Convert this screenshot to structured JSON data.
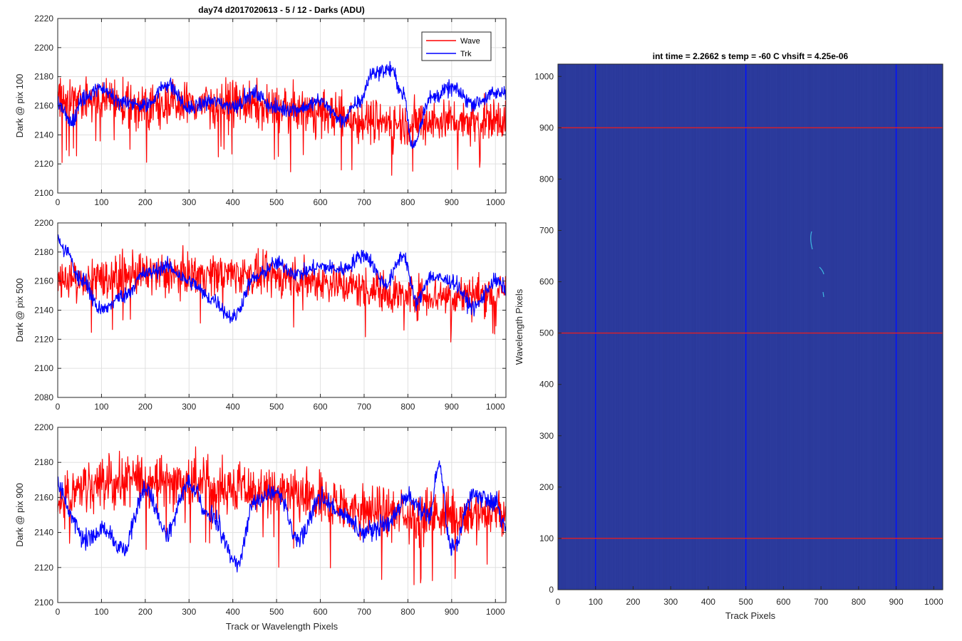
{
  "figure_title": "day74 d2017020613 - 5 / 12 - Darks (ADU)",
  "colors": {
    "wave": "#ff0000",
    "trk": "#0000ff",
    "image_bg": "#2b3a9c",
    "grid": "#e0e0e0"
  },
  "chart_data": [
    {
      "type": "line",
      "ylabel": "Dark @ pix 100",
      "xlabel": "",
      "xlim": [
        0,
        1024
      ],
      "ylim": [
        2100,
        2220
      ],
      "xticks": [
        0,
        100,
        200,
        300,
        400,
        500,
        600,
        700,
        800,
        900,
        1000
      ],
      "yticks": [
        2100,
        2120,
        2140,
        2160,
        2180,
        2200,
        2220
      ],
      "grid": true,
      "legend": {
        "placement": "top-right",
        "entries": [
          "Wave",
          "Trk"
        ]
      },
      "series": [
        {
          "name": "Wave",
          "color": "#ff0000",
          "anchors_x": [
            0,
            100,
            200,
            300,
            400,
            500,
            600,
            700,
            800,
            900,
            1024
          ],
          "anchors_y": [
            2165,
            2163,
            2160,
            2162,
            2162,
            2158,
            2155,
            2150,
            2148,
            2150,
            2150
          ],
          "noise": 14
        },
        {
          "name": "Trk",
          "color": "#0000ff",
          "anchors_x": [
            0,
            30,
            60,
            100,
            150,
            200,
            250,
            300,
            350,
            400,
            450,
            500,
            550,
            600,
            650,
            690,
            720,
            760,
            790,
            810,
            850,
            900,
            950,
            1000,
            1024
          ],
          "anchors_y": [
            2162,
            2148,
            2165,
            2172,
            2162,
            2160,
            2175,
            2158,
            2163,
            2160,
            2168,
            2158,
            2158,
            2163,
            2150,
            2163,
            2183,
            2185,
            2168,
            2132,
            2165,
            2172,
            2162,
            2168,
            2170
          ],
          "noise": 5
        }
      ]
    },
    {
      "type": "line",
      "ylabel": "Dark @ pix 500",
      "xlabel": "",
      "xlim": [
        0,
        1024
      ],
      "ylim": [
        2080,
        2200
      ],
      "xticks": [
        0,
        100,
        200,
        300,
        400,
        500,
        600,
        700,
        800,
        900,
        1000
      ],
      "yticks": [
        2080,
        2100,
        2120,
        2140,
        2160,
        2180,
        2200
      ],
      "grid": true,
      "series": [
        {
          "name": "Wave",
          "color": "#ff0000",
          "anchors_x": [
            0,
            100,
            200,
            300,
            400,
            500,
            600,
            700,
            800,
            900,
            1024
          ],
          "anchors_y": [
            2160,
            2162,
            2165,
            2165,
            2165,
            2163,
            2160,
            2155,
            2150,
            2150,
            2152
          ],
          "noise": 13
        },
        {
          "name": "Trk",
          "color": "#0000ff",
          "anchors_x": [
            0,
            20,
            50,
            100,
            150,
            200,
            250,
            300,
            350,
            400,
            450,
            500,
            550,
            600,
            650,
            700,
            750,
            790,
            820,
            850,
            900,
            950,
            1000,
            1024
          ],
          "anchors_y": [
            2188,
            2180,
            2162,
            2140,
            2150,
            2165,
            2170,
            2160,
            2148,
            2135,
            2162,
            2172,
            2165,
            2170,
            2168,
            2178,
            2158,
            2178,
            2145,
            2163,
            2160,
            2142,
            2160,
            2155
          ],
          "noise": 5
        }
      ]
    },
    {
      "type": "line",
      "ylabel": "Dark @ pix 900",
      "xlabel": "Track or Wavelength Pixels",
      "xlim": [
        0,
        1024
      ],
      "ylim": [
        2100,
        2200
      ],
      "xticks": [
        0,
        100,
        200,
        300,
        400,
        500,
        600,
        700,
        800,
        900,
        1000
      ],
      "yticks": [
        2100,
        2120,
        2140,
        2160,
        2180,
        2200
      ],
      "grid": true,
      "series": [
        {
          "name": "Wave",
          "color": "#ff0000",
          "anchors_x": [
            0,
            100,
            200,
            300,
            400,
            500,
            600,
            700,
            800,
            900,
            1024
          ],
          "anchors_y": [
            2160,
            2168,
            2170,
            2168,
            2165,
            2162,
            2158,
            2152,
            2150,
            2150,
            2152
          ],
          "noise": 14
        },
        {
          "name": "Trk",
          "color": "#0000ff",
          "anchors_x": [
            0,
            30,
            60,
            100,
            150,
            200,
            250,
            300,
            350,
            410,
            450,
            500,
            550,
            600,
            650,
            700,
            750,
            800,
            850,
            870,
            900,
            950,
            1000,
            1024
          ],
          "anchors_y": [
            2168,
            2150,
            2135,
            2142,
            2130,
            2165,
            2140,
            2168,
            2150,
            2122,
            2158,
            2163,
            2135,
            2160,
            2150,
            2140,
            2145,
            2160,
            2150,
            2178,
            2130,
            2162,
            2158,
            2142
          ],
          "noise": 5
        }
      ]
    },
    {
      "type": "heatmap",
      "title": "int time = 2.2662 s    temp = -60 C    vhsift = 4.25e-06",
      "xlabel": "Track Pixels",
      "ylabel": "Wavelength Pixels",
      "xlim": [
        0,
        1024
      ],
      "ylim": [
        0,
        1024
      ],
      "xticks": [
        0,
        100,
        200,
        300,
        400,
        500,
        600,
        700,
        800,
        900,
        1000
      ],
      "yticks": [
        0,
        100,
        200,
        300,
        400,
        500,
        600,
        700,
        800,
        900,
        1000
      ],
      "marker_lines": {
        "vertical_x": [
          100,
          500,
          900
        ],
        "horizontal_y": [
          100,
          500,
          900
        ]
      }
    }
  ]
}
